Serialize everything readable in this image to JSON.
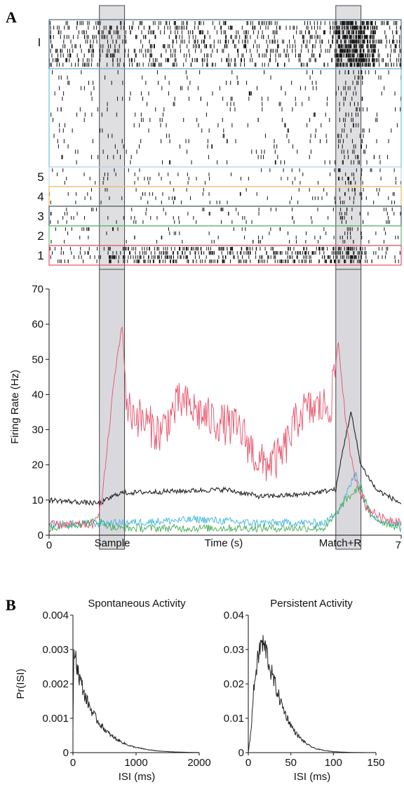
{
  "panel_labels": {
    "a": "A",
    "b": "B"
  },
  "chart_data": [
    {
      "type": "raster",
      "groups": [
        {
          "label": "I",
          "trials": 10,
          "box_color": "#4a6b7a",
          "pattern": "background_with_match_burst"
        },
        {
          "label": "",
          "trials": 18,
          "box_color": "#6cc3dd",
          "pattern": "sparse"
        },
        {
          "label": "5",
          "trials": 4,
          "box_color": "#bfd7e6",
          "pattern": "sparse"
        },
        {
          "label": "4",
          "trials": 4,
          "box_color": "#f0b65a",
          "pattern": "sparse"
        },
        {
          "label": "3",
          "trials": 4,
          "box_color": "#3d5a6a",
          "pattern": "sparse"
        },
        {
          "label": "2",
          "trials": 4,
          "box_color": "#5fbf6f",
          "pattern": "sparse"
        },
        {
          "label": "1",
          "trials": 4,
          "box_color": "#e8506a",
          "pattern": "dense_sample_to_match"
        }
      ],
      "shaded_epochs_s": [
        [
          1.0,
          1.5
        ],
        [
          5.7,
          6.2
        ]
      ]
    },
    {
      "type": "line",
      "ylabel": "Firing Rate (Hz)",
      "xlabel": "Time (s)",
      "x_tick_labels": [
        "0",
        "7"
      ],
      "y_ticks": [
        0,
        10,
        20,
        30,
        40,
        50,
        60,
        70
      ],
      "xlim": [
        0,
        7
      ],
      "ylim": [
        0,
        70
      ],
      "epoch_labels": [
        "Sample",
        "Match+R"
      ],
      "shaded_epochs_s": [
        [
          1.0,
          1.5
        ],
        [
          5.7,
          6.2
        ]
      ],
      "series": [
        {
          "color": "#e8506a",
          "baseline": [
            [
              0,
              3
            ],
            [
              0.9,
              3
            ],
            [
              1.05,
              10
            ],
            [
              1.3,
              45
            ],
            [
              1.45,
              60
            ],
            [
              1.55,
              36
            ],
            [
              2.2,
              29
            ],
            [
              2.6,
              38
            ],
            [
              3.2,
              33
            ],
            [
              3.8,
              30
            ],
            [
              4.2,
              20
            ],
            [
              4.6,
              22
            ],
            [
              5.0,
              35
            ],
            [
              5.6,
              37
            ],
            [
              5.75,
              55
            ],
            [
              5.9,
              32
            ],
            [
              6.05,
              18
            ],
            [
              6.3,
              8
            ],
            [
              6.6,
              5
            ],
            [
              7,
              4
            ]
          ]
        },
        {
          "color": "#222222",
          "baseline": [
            [
              0,
              10
            ],
            [
              1.0,
              9
            ],
            [
              1.4,
              12
            ],
            [
              2.5,
              12.5
            ],
            [
              3.5,
              13
            ],
            [
              4.2,
              11
            ],
            [
              5.0,
              11.5
            ],
            [
              5.7,
              13
            ],
            [
              5.85,
              25
            ],
            [
              6.0,
              35
            ],
            [
              6.2,
              20
            ],
            [
              6.5,
              13
            ],
            [
              7,
              9
            ]
          ]
        },
        {
          "color": "#3fb5e0",
          "baseline": [
            [
              0,
              3
            ],
            [
              1.5,
              3.5
            ],
            [
              3.0,
              4.5
            ],
            [
              4.0,
              3.5
            ],
            [
              5.5,
              3.5
            ],
            [
              5.8,
              8
            ],
            [
              6.1,
              18
            ],
            [
              6.3,
              8
            ],
            [
              6.6,
              4
            ],
            [
              7,
              3
            ]
          ]
        },
        {
          "color": "#44aa55",
          "baseline": [
            [
              0,
              2
            ],
            [
              1.0,
              4
            ],
            [
              1.3,
              2
            ],
            [
              3.0,
              2
            ],
            [
              5.5,
              2
            ],
            [
              5.9,
              10
            ],
            [
              6.2,
              14
            ],
            [
              6.4,
              5
            ],
            [
              7,
              2
            ]
          ]
        }
      ]
    },
    {
      "type": "histogram_line",
      "title": "Spontaneous Activity",
      "xlabel": "ISI (ms)",
      "ylabel": "Pr(ISI)",
      "xlim": [
        0,
        2000
      ],
      "ylim": [
        0,
        0.004
      ],
      "x_ticks": [
        0,
        1000,
        2000
      ],
      "y_ticks": [
        0,
        0.001,
        0.002,
        0.003,
        0.004
      ],
      "x_tick_labels": [
        "0",
        "1000",
        "2000"
      ],
      "y_tick_labels": [
        "0",
        "0.001",
        "0.002",
        "0.003",
        "0.004"
      ],
      "peak": {
        "x": 25,
        "y": 0.003
      },
      "points": [
        [
          0,
          0.0006
        ],
        [
          5,
          0.0016
        ],
        [
          15,
          0.0027
        ],
        [
          25,
          0.003
        ],
        [
          60,
          0.0026
        ],
        [
          100,
          0.0022
        ],
        [
          200,
          0.0016
        ],
        [
          300,
          0.0012
        ],
        [
          400,
          0.0009
        ],
        [
          500,
          0.00068
        ],
        [
          600,
          0.0005
        ],
        [
          700,
          0.00038
        ],
        [
          800,
          0.00028
        ],
        [
          900,
          0.0002
        ],
        [
          1000,
          0.00015
        ],
        [
          1200,
          8e-05
        ],
        [
          1400,
          4e-05
        ],
        [
          1600,
          2e-05
        ],
        [
          1800,
          1e-05
        ],
        [
          2000,
          5e-06
        ]
      ]
    },
    {
      "type": "histogram_line",
      "title": "Persistent Activity",
      "xlabel": "ISI (ms)",
      "ylabel": "",
      "xlim": [
        0,
        150
      ],
      "ylim": [
        0,
        0.04
      ],
      "x_ticks": [
        0,
        50,
        100,
        150
      ],
      "y_ticks": [
        0,
        0.01,
        0.02,
        0.03,
        0.04
      ],
      "x_tick_labels": [
        "0",
        "50",
        "100",
        "150"
      ],
      "y_tick_labels": [
        "0",
        "0.01",
        "0.02",
        "0.03",
        "0.04"
      ],
      "peak": {
        "x": 15,
        "y": 0.032
      },
      "points": [
        [
          0,
          0
        ],
        [
          3,
          0.006
        ],
        [
          6,
          0.017
        ],
        [
          9,
          0.024
        ],
        [
          12,
          0.028
        ],
        [
          15,
          0.032
        ],
        [
          18,
          0.031
        ],
        [
          21,
          0.03
        ],
        [
          25,
          0.025
        ],
        [
          30,
          0.021
        ],
        [
          35,
          0.017
        ],
        [
          40,
          0.0135
        ],
        [
          45,
          0.0105
        ],
        [
          50,
          0.008
        ],
        [
          55,
          0.006
        ],
        [
          60,
          0.0045
        ],
        [
          65,
          0.0033
        ],
        [
          70,
          0.0023
        ],
        [
          75,
          0.0016
        ],
        [
          80,
          0.0011
        ],
        [
          90,
          0.0006
        ],
        [
          100,
          0.0003
        ],
        [
          110,
          0.00015
        ],
        [
          120,
          8e-05
        ],
        [
          135,
          3e-05
        ],
        [
          150,
          1e-05
        ]
      ]
    }
  ]
}
